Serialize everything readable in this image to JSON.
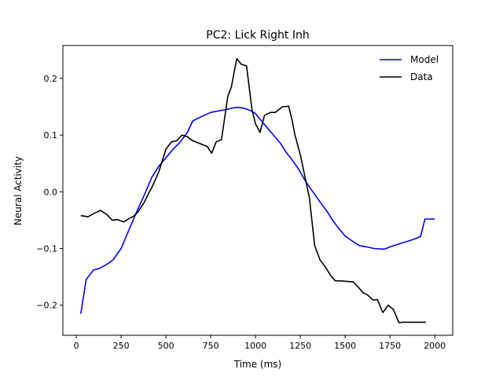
{
  "chart_data": {
    "type": "line",
    "title": "PC2: Lick Right Inh",
    "xlabel": "Time (ms)",
    "ylabel": "Neural Activity",
    "xlim": [
      -75,
      2100
    ],
    "ylim": [
      -0.253,
      0.258
    ],
    "xticks": [
      0,
      250,
      500,
      750,
      1000,
      1250,
      1500,
      1750,
      2000
    ],
    "xtick_labels": [
      "0",
      "250",
      "500",
      "750",
      "1000",
      "1250",
      "1500",
      "1750",
      "2000"
    ],
    "yticks": [
      -0.2,
      -0.1,
      0.0,
      0.1,
      0.2
    ],
    "ytick_labels": [
      "−0.2",
      "−0.1",
      "0.0",
      "0.1",
      "0.2"
    ],
    "grid": false,
    "legend_position": "top-right",
    "series": [
      {
        "name": "Model",
        "color": "#0000ff",
        "x": [
          25,
          55,
          95,
          130,
          170,
          205,
          250,
          290,
          330,
          380,
          420,
          460,
          500,
          540,
          580,
          620,
          650,
          700,
          750,
          800,
          850,
          875,
          900,
          925,
          950,
          980,
          1000,
          1020,
          1060,
          1100,
          1140,
          1170,
          1200,
          1240,
          1280,
          1320,
          1360,
          1400,
          1430,
          1460,
          1500,
          1540,
          1580,
          1620,
          1660,
          1700,
          1720,
          1760,
          1800,
          1840,
          1880,
          1920,
          1945,
          1975,
          2000
        ],
        "y": [
          -0.215,
          -0.155,
          -0.138,
          -0.135,
          -0.128,
          -0.12,
          -0.1,
          -0.07,
          -0.04,
          -0.005,
          0.025,
          0.045,
          0.06,
          0.075,
          0.088,
          0.105,
          0.125,
          0.133,
          0.14,
          0.143,
          0.146,
          0.148,
          0.149,
          0.148,
          0.146,
          0.142,
          0.138,
          0.13,
          0.115,
          0.1,
          0.085,
          0.07,
          0.058,
          0.04,
          0.018,
          0.0,
          -0.018,
          -0.035,
          -0.05,
          -0.063,
          -0.078,
          -0.087,
          -0.095,
          -0.097,
          -0.1,
          -0.101,
          -0.101,
          -0.096,
          -0.092,
          -0.088,
          -0.084,
          -0.079,
          -0.048,
          -0.048,
          -0.048
        ]
      },
      {
        "name": "Data",
        "color": "#000000",
        "x": [
          25,
          65,
          100,
          135,
          170,
          200,
          230,
          265,
          295,
          320,
          345,
          380,
          400,
          425,
          460,
          500,
          530,
          560,
          590,
          620,
          650,
          690,
          730,
          755,
          780,
          810,
          845,
          865,
          895,
          920,
          950,
          980,
          1000,
          1025,
          1050,
          1085,
          1110,
          1150,
          1185,
          1205,
          1220,
          1250,
          1270,
          1300,
          1330,
          1360,
          1390,
          1420,
          1445,
          1475,
          1510,
          1545,
          1570,
          1600,
          1625,
          1655,
          1680,
          1710,
          1740,
          1770,
          1800,
          1820,
          1845,
          1870,
          1900,
          1925,
          1950
        ],
        "y": [
          -0.042,
          -0.044,
          -0.038,
          -0.033,
          -0.04,
          -0.05,
          -0.049,
          -0.053,
          -0.047,
          -0.043,
          -0.035,
          -0.018,
          -0.005,
          0.01,
          0.035,
          0.075,
          0.088,
          0.09,
          0.1,
          0.097,
          0.09,
          0.085,
          0.08,
          0.068,
          0.088,
          0.092,
          0.168,
          0.185,
          0.235,
          0.225,
          0.222,
          0.145,
          0.12,
          0.105,
          0.135,
          0.14,
          0.14,
          0.15,
          0.151,
          0.125,
          0.1,
          0.065,
          0.035,
          -0.01,
          -0.095,
          -0.12,
          -0.133,
          -0.148,
          -0.157,
          -0.157,
          -0.158,
          -0.159,
          -0.167,
          -0.178,
          -0.182,
          -0.191,
          -0.19,
          -0.213,
          -0.2,
          -0.208,
          -0.231,
          -0.23,
          -0.23,
          -0.23,
          -0.23,
          -0.23,
          -0.23
        ]
      }
    ]
  }
}
